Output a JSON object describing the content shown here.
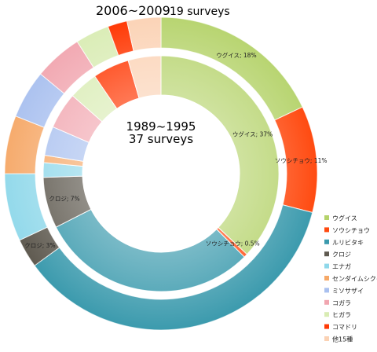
{
  "chart_data": {
    "type": "donut",
    "outer_title": {
      "years": "2006~2009",
      "surveys": "19 surveys"
    },
    "inner_title": {
      "years": "1989~1995",
      "surveys": "37 surveys"
    },
    "legend_position": "right",
    "categories": [
      {
        "name": "ウグイス",
        "color": "#b5d36b"
      },
      {
        "name": "ソウシチョウ",
        "color": "#ff4a10"
      },
      {
        "name": "ルリビタキ",
        "color": "#3b9aad"
      },
      {
        "name": "クロジ",
        "color": "#5f5a50"
      },
      {
        "name": "エナガ",
        "color": "#8fd8ea"
      },
      {
        "name": "センダイムシクイ",
        "color": "#f6a867"
      },
      {
        "name": "ミソサザイ",
        "color": "#a9c0ef"
      },
      {
        "name": "コガラ",
        "color": "#f1a6b0"
      },
      {
        "name": "ヒガラ",
        "color": "#d9ecb4"
      },
      {
        "name": "コマドリ",
        "color": "#ff3a06"
      },
      {
        "name": "他15種",
        "color": "#fbd2b4"
      }
    ],
    "series": [
      {
        "name": "2006~2009",
        "ring": "outer",
        "values": [
          18,
          11,
          36,
          3,
          7,
          6,
          5,
          5,
          3.5,
          2,
          3.5
        ],
        "labels": {
          "ウグイス": "ウグイス; 18%",
          "ソウシチョウ": "ソウシチョウ; 11%",
          "クロジ": "クロジ; 3%"
        }
      },
      {
        "name": "1989~1995",
        "ring": "inner",
        "values": [
          37,
          0.5,
          30,
          7,
          2,
          1,
          4,
          5,
          4,
          5,
          4.5
        ],
        "labels": {
          "ウグイス": "ウグイス; 37%",
          "ソウシチョウ": "ソウシチョウ; 0.5%",
          "クロジ": "クロジ; 7%"
        }
      }
    ]
  }
}
